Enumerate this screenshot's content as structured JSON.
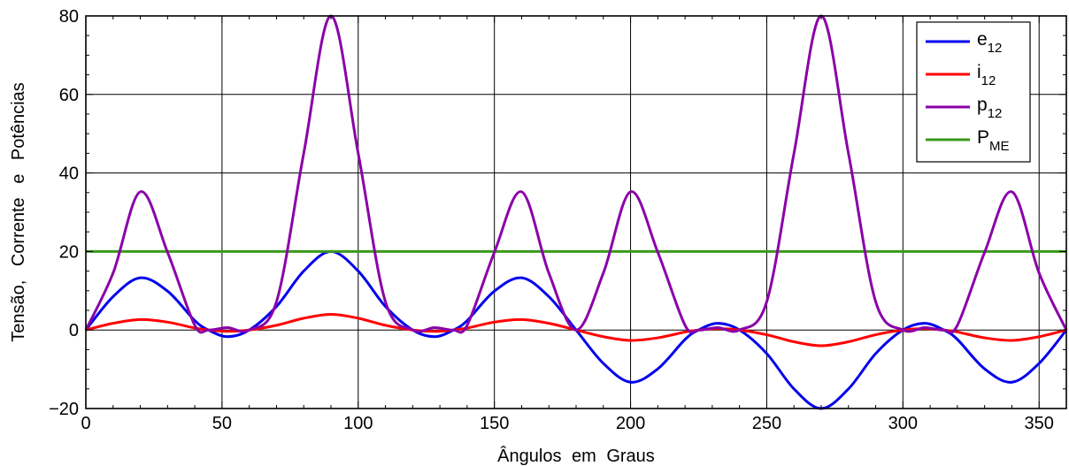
{
  "chart_data": {
    "type": "line",
    "title": "",
    "xlabel": "Ângulos em Graus",
    "ylabel": "Tensão, Corrente e Potências",
    "xlim": [
      0,
      360
    ],
    "ylim": [
      -20,
      80
    ],
    "xticks": [
      0,
      50,
      100,
      150,
      200,
      250,
      300,
      350
    ],
    "yticks": [
      -20,
      0,
      20,
      40,
      60,
      80
    ],
    "x_tick_labels": [
      "0",
      "50",
      "100",
      "150",
      "200",
      "250",
      "300",
      "350"
    ],
    "y_tick_labels": [
      "−20",
      "0",
      "20",
      "40",
      "60",
      "80"
    ],
    "grid": true,
    "legend_position": "top-right",
    "series": [
      {
        "name": "e",
        "name_sub": "12",
        "color": "#0000ee",
        "x": [
          0,
          10,
          20,
          30,
          40,
          45,
          52,
          60,
          70,
          80,
          90,
          100,
          110,
          120,
          128,
          135,
          140,
          150,
          160,
          170,
          180,
          190,
          200,
          210,
          220,
          225,
          232,
          240,
          250,
          260,
          270,
          280,
          290,
          300,
          308,
          315,
          320,
          330,
          340,
          350,
          360
        ],
        "y": [
          0,
          8.5,
          13.3,
          9.9,
          2.4,
          0,
          -1.7,
          0,
          6,
          15,
          20,
          15,
          6,
          0,
          -1.7,
          0,
          2.4,
          9.9,
          13.3,
          8.5,
          0,
          -8.5,
          -13.3,
          -9.9,
          -2.4,
          0,
          1.7,
          0,
          -6,
          -15,
          -20,
          -15,
          -6,
          0,
          1.7,
          0,
          -2.4,
          -9.9,
          -13.3,
          -8.5,
          0
        ]
      },
      {
        "name": "i",
        "name_sub": "12",
        "color": "#ff0000",
        "x": [
          0,
          10,
          20,
          30,
          40,
          45,
          52,
          60,
          70,
          80,
          90,
          100,
          110,
          120,
          128,
          135,
          140,
          150,
          160,
          170,
          180,
          190,
          200,
          210,
          220,
          225,
          232,
          240,
          250,
          260,
          270,
          280,
          290,
          300,
          308,
          315,
          320,
          330,
          340,
          350,
          360
        ],
        "y": [
          0,
          1.7,
          2.65,
          2.0,
          0.5,
          0,
          -0.35,
          0,
          1.2,
          3.0,
          4,
          3.0,
          1.2,
          0,
          -0.35,
          0,
          0.5,
          2.0,
          2.65,
          1.7,
          0,
          -1.7,
          -2.65,
          -2.0,
          -0.5,
          0,
          0.35,
          0,
          -1.2,
          -3.0,
          -4,
          -3.0,
          -1.2,
          0,
          0.35,
          0,
          -0.5,
          -2.0,
          -2.65,
          -1.7,
          0
        ]
      },
      {
        "name": "p",
        "name_sub": "12",
        "color": "#8b00a8",
        "x": [
          0,
          10,
          20,
          30,
          40,
          45,
          52,
          60,
          70,
          80,
          90,
          100,
          110,
          120,
          128,
          135,
          140,
          150,
          160,
          170,
          180,
          190,
          200,
          210,
          220,
          225,
          232,
          240,
          250,
          260,
          270,
          280,
          290,
          300,
          308,
          315,
          320,
          330,
          340,
          350,
          360
        ],
        "y": [
          0,
          14.5,
          35.2,
          19.8,
          1.2,
          0,
          0.6,
          0,
          7.2,
          45,
          80,
          45,
          7.2,
          0,
          0.6,
          0,
          1.2,
          19.8,
          35.2,
          14.5,
          0,
          14.5,
          35.2,
          19.8,
          1.2,
          0,
          0.6,
          0,
          7.2,
          45,
          80,
          45,
          7.2,
          0,
          0.6,
          0,
          1.2,
          19.8,
          35.2,
          14.5,
          0
        ]
      },
      {
        "name": "P",
        "name_sub": "ME",
        "color": "#3a9a1c",
        "x": [
          0,
          360
        ],
        "y": [
          20,
          20
        ]
      }
    ]
  }
}
